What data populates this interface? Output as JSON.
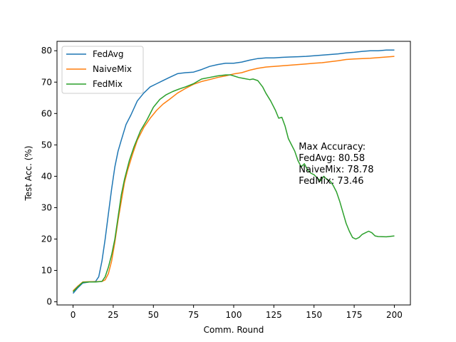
{
  "chart_data": {
    "type": "line",
    "title": "",
    "xlabel": "Comm. Round",
    "ylabel": "Test Acc. (%)",
    "xlim": [
      -10,
      210
    ],
    "ylim": [
      -1,
      83
    ],
    "xticks": [
      0,
      25,
      50,
      75,
      100,
      125,
      150,
      175,
      200
    ],
    "yticks": [
      0,
      10,
      20,
      30,
      40,
      50,
      60,
      70,
      80
    ],
    "grid": false,
    "legend": "top-left",
    "series": [
      {
        "name": "FedAvg",
        "color": "#1f77b4",
        "x": [
          0,
          3,
          6,
          10,
          14,
          16,
          18,
          20,
          22,
          24,
          26,
          28,
          30,
          33,
          36,
          40,
          44,
          48,
          52,
          56,
          60,
          65,
          70,
          75,
          80,
          85,
          90,
          95,
          100,
          105,
          110,
          115,
          120,
          125,
          130,
          135,
          140,
          145,
          150,
          155,
          160,
          165,
          170,
          175,
          180,
          185,
          190,
          195,
          200
        ],
        "y": [
          2.7,
          4.5,
          6.0,
          6.3,
          6.5,
          8.0,
          13.0,
          20.0,
          28.0,
          36.0,
          43.0,
          48.0,
          51.5,
          56.5,
          59.5,
          64.0,
          66.5,
          68.5,
          69.5,
          70.5,
          71.5,
          72.7,
          73.0,
          73.2,
          74.0,
          75.0,
          75.6,
          76.0,
          76.0,
          76.4,
          77.0,
          77.5,
          77.7,
          77.7,
          77.9,
          78.0,
          78.1,
          78.2,
          78.4,
          78.6,
          78.8,
          79.0,
          79.3,
          79.5,
          79.8,
          80.0,
          80.0,
          80.2,
          80.2
        ]
      },
      {
        "name": "NaiveMix",
        "color": "#ff7f0e",
        "x": [
          0,
          3,
          6,
          10,
          14,
          18,
          20,
          22,
          24,
          26,
          28,
          30,
          32,
          34,
          37,
          40,
          44,
          48,
          52,
          56,
          60,
          65,
          70,
          75,
          80,
          85,
          90,
          95,
          100,
          105,
          110,
          115,
          120,
          125,
          130,
          135,
          140,
          145,
          150,
          155,
          160,
          165,
          170,
          175,
          180,
          185,
          190,
          195,
          200
        ],
        "y": [
          3.5,
          5.0,
          6.3,
          6.4,
          6.4,
          6.5,
          7.0,
          9.0,
          13.0,
          19.0,
          26.0,
          32.0,
          38.0,
          42.0,
          47.0,
          51.5,
          55.5,
          58.5,
          61.0,
          63.0,
          64.5,
          66.5,
          68.0,
          69.3,
          70.2,
          70.8,
          71.5,
          72.0,
          72.6,
          73.0,
          73.8,
          74.4,
          74.8,
          75.0,
          75.2,
          75.4,
          75.6,
          75.8,
          76.0,
          76.2,
          76.5,
          76.8,
          77.2,
          77.4,
          77.5,
          77.6,
          77.8,
          78.0,
          78.2
        ]
      },
      {
        "name": "FedMix",
        "color": "#2ca02c",
        "x": [
          0,
          3,
          6,
          10,
          14,
          18,
          20,
          22,
          24,
          26,
          28,
          30,
          32,
          35,
          38,
          42,
          46,
          50,
          54,
          58,
          62,
          66,
          70,
          75,
          80,
          85,
          90,
          95,
          98,
          100,
          103,
          106,
          110,
          112,
          115,
          118,
          120,
          123,
          126,
          128,
          130,
          132,
          134,
          136,
          138,
          140,
          142,
          144,
          146,
          148,
          150,
          152,
          154,
          156,
          158,
          160,
          162,
          164,
          166,
          168,
          170,
          172,
          174,
          176,
          178,
          180,
          182,
          184,
          186,
          188,
          190,
          195,
          200
        ],
        "y": [
          3.2,
          4.8,
          6.2,
          6.3,
          6.3,
          6.5,
          8.0,
          11.0,
          15.0,
          20.0,
          27.0,
          34.0,
          39.0,
          45.0,
          49.5,
          54.5,
          58.0,
          62.0,
          64.5,
          66.0,
          67.0,
          67.8,
          68.5,
          69.5,
          71.0,
          71.5,
          72.0,
          72.3,
          72.3,
          72.0,
          71.5,
          71.2,
          70.8,
          71.0,
          70.5,
          68.5,
          66.5,
          64.0,
          61.0,
          58.5,
          58.8,
          56.0,
          52.0,
          50.0,
          48.0,
          45.0,
          43.0,
          44.0,
          42.0,
          41.0,
          40.5,
          39.5,
          38.5,
          40.0,
          39.0,
          38.5,
          37.0,
          35.0,
          32.0,
          28.5,
          25.0,
          22.5,
          20.5,
          20.0,
          20.5,
          21.5,
          22.0,
          22.5,
          22.0,
          21.0,
          20.8,
          20.7,
          21.0
        ]
      }
    ],
    "annotation": {
      "lines": [
        "Max Accuracy:",
        "FedAvg: 80.58",
        "NaiveMix: 78.78",
        "FedMix: 73.46"
      ],
      "x": 140.5,
      "y": 48.5
    }
  }
}
